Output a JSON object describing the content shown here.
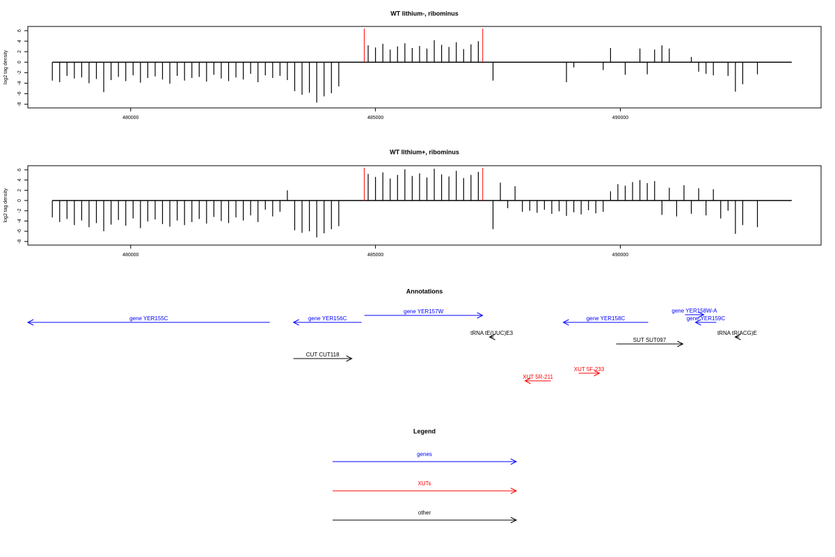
{
  "chart_data": [
    {
      "type": "bar",
      "title": "WT lithium-, ribominus",
      "y_label": "log2 tag density",
      "color": "#000000",
      "marker_color": "#ff0000",
      "markers": [
        484770,
        487190
      ],
      "baseline_range": [
        478400,
        493500
      ],
      "xlim": [
        477900,
        494100
      ],
      "ylim": [
        -8.7,
        6.8
      ],
      "xticks": [
        480000,
        485000,
        490000
      ],
      "yticks": [
        6,
        4,
        2,
        0,
        -2,
        -4,
        -6,
        -8
      ],
      "x": [
        478400,
        478550,
        478700,
        478850,
        479000,
        479150,
        479300,
        479450,
        479600,
        479750,
        479900,
        480050,
        480200,
        480350,
        480500,
        480650,
        480800,
        480950,
        481100,
        481250,
        481400,
        481550,
        481700,
        481850,
        482000,
        482150,
        482300,
        482450,
        482600,
        482750,
        482900,
        483050,
        483200,
        483350,
        483500,
        483650,
        483800,
        483950,
        484100,
        484250,
        484400,
        484550,
        484700,
        484850,
        485000,
        485150,
        485300,
        485450,
        485600,
        485750,
        485900,
        486050,
        486200,
        486350,
        486500,
        486650,
        486800,
        486950,
        487100,
        487250,
        487400,
        487550,
        487700,
        487850,
        488000,
        488150,
        488300,
        488450,
        488600,
        488750,
        488900,
        489050,
        489200,
        489350,
        489500,
        489650,
        489800,
        489950,
        490100,
        490250,
        490400,
        490550,
        490700,
        490850,
        491000,
        491150,
        491300,
        491450,
        491600,
        491750,
        491900,
        492050,
        492200,
        492350,
        492500,
        492650,
        492800,
        492950,
        493100,
        493250,
        493400
      ],
      "values": [
        -3.5,
        -3.8,
        -2.6,
        -3.1,
        -2.9,
        -4.0,
        -3.2,
        -5.7,
        -3.4,
        -2.8,
        -3.6,
        -2.5,
        -3.9,
        -3.0,
        -2.7,
        -3.3,
        -4.1,
        -2.6,
        -3.5,
        -3.0,
        -2.8,
        -3.7,
        -2.4,
        -3.1,
        -3.6,
        -2.9,
        -3.3,
        -2.2,
        -3.8,
        -2.5,
        -3.0,
        -2.6,
        -3.4,
        -5.5,
        -6.2,
        -5.8,
        -7.7,
        -6.5,
        -5.9,
        -4.6,
        0,
        0,
        0,
        3.2,
        2.8,
        3.5,
        2.4,
        3.0,
        3.6,
        2.7,
        3.1,
        2.6,
        4.2,
        3.3,
        2.9,
        3.8,
        2.5,
        3.4,
        4.0,
        0,
        -3.5,
        0,
        0,
        0,
        0,
        0,
        0,
        0,
        0,
        0,
        -3.8,
        -1.0,
        0,
        0,
        0,
        -1.5,
        2.7,
        0,
        -2.4,
        0,
        2.6,
        -2.3,
        2.4,
        3.2,
        2.6,
        0,
        0,
        1.0,
        -1.8,
        -2.2,
        -2.5,
        0,
        -2.6,
        -5.6,
        -4.2,
        0,
        -2.3,
        0,
        0,
        0,
        0
      ]
    },
    {
      "type": "bar",
      "title": "WT lithium+, ribominus",
      "y_label": "log2 tag density",
      "color": "#000000",
      "marker_color": "#ff0000",
      "markers": [
        484770,
        487190
      ],
      "baseline_range": [
        478400,
        493500
      ],
      "xlim": [
        477900,
        494100
      ],
      "ylim": [
        -8.7,
        6.8
      ],
      "xticks": [
        480000,
        485000,
        490000
      ],
      "yticks": [
        6,
        4,
        2,
        0,
        -2,
        -4,
        -6,
        -8
      ],
      "x": [
        478400,
        478550,
        478700,
        478850,
        479000,
        479150,
        479300,
        479450,
        479600,
        479750,
        479900,
        480050,
        480200,
        480350,
        480500,
        480650,
        480800,
        480950,
        481100,
        481250,
        481400,
        481550,
        481700,
        481850,
        482000,
        482150,
        482300,
        482450,
        482600,
        482750,
        482900,
        483050,
        483200,
        483350,
        483500,
        483650,
        483800,
        483950,
        484100,
        484250,
        484400,
        484550,
        484700,
        484850,
        485000,
        485150,
        485300,
        485450,
        485600,
        485750,
        485900,
        486050,
        486200,
        486350,
        486500,
        486650,
        486800,
        486950,
        487100,
        487250,
        487400,
        487550,
        487700,
        487850,
        488000,
        488150,
        488300,
        488450,
        488600,
        488750,
        488900,
        489050,
        489200,
        489350,
        489500,
        489650,
        489800,
        489950,
        490100,
        490250,
        490400,
        490550,
        490700,
        490850,
        491000,
        491150,
        491300,
        491450,
        491600,
        491750,
        491900,
        492050,
        492200,
        492350,
        492500,
        492650,
        492800,
        492950,
        493100,
        493250,
        493400
      ],
      "values": [
        -3.3,
        -4.2,
        -3.6,
        -4.8,
        -3.9,
        -5.2,
        -4.4,
        -6.0,
        -4.7,
        -3.8,
        -4.9,
        -3.5,
        -5.4,
        -4.1,
        -3.7,
        -4.6,
        -5.1,
        -3.9,
        -4.8,
        -4.2,
        -3.6,
        -4.5,
        -3.2,
        -4.0,
        -4.4,
        -3.3,
        -3.9,
        -2.9,
        -4.2,
        -1.8,
        -3.1,
        -2.2,
        2.0,
        -5.8,
        -6.3,
        -6.0,
        -7.2,
        -6.4,
        -5.6,
        -5.0,
        0,
        0,
        0,
        5.2,
        4.6,
        5.5,
        4.3,
        5.0,
        6.1,
        4.8,
        5.3,
        4.5,
        6.2,
        5.1,
        4.7,
        5.8,
        4.4,
        5.0,
        5.6,
        0,
        -5.6,
        3.5,
        -1.5,
        2.8,
        -2.2,
        -2.0,
        -2.4,
        -1.8,
        -2.6,
        -2.1,
        -3.0,
        -2.3,
        -2.7,
        -1.9,
        -2.5,
        -2.2,
        1.8,
        3.2,
        2.9,
        3.6,
        4.0,
        3.4,
        3.8,
        -2.8,
        2.5,
        -3.1,
        3.0,
        -2.6,
        2.4,
        -2.9,
        2.2,
        -3.5,
        -2.0,
        -6.5,
        -4.8,
        0,
        -5.2,
        0,
        0,
        0,
        0
      ]
    }
  ],
  "annotations": {
    "title": "Annotations",
    "features": [
      {
        "label": "gene YER155C",
        "start": 477900,
        "end": 482841,
        "strand": "-",
        "color": "#0000ff"
      },
      {
        "label": "gene YER156C",
        "start": 483324,
        "end": 484716,
        "strand": "-",
        "color": "#0000ff"
      },
      {
        "label": "gene YER157W",
        "start": 484773,
        "end": 487188,
        "strand": "+",
        "color": "#0000ff"
      },
      {
        "label": "tRNA tE(UUC)E3",
        "start": 487330,
        "end": 487415,
        "strand": "-",
        "color": "#000000"
      },
      {
        "label": "gene YER158C",
        "start": 488835,
        "end": 490568,
        "strand": "-",
        "color": "#0000ff"
      },
      {
        "label": "gene YER158W-A",
        "start": 491321,
        "end": 491705,
        "strand": "+",
        "color": "#0000ff"
      },
      {
        "label": "gene YER159C",
        "start": 491534,
        "end": 491960,
        "strand": "-",
        "color": "#0000ff"
      },
      {
        "label": "tRNA tR(ACG)E",
        "start": 492344,
        "end": 492429,
        "strand": "-",
        "color": "#000000"
      },
      {
        "label": "SUT SUT097",
        "start": 489915,
        "end": 491278,
        "strand": "+",
        "color": "#000000"
      },
      {
        "label": "CUT CUT118",
        "start": 483324,
        "end": 484517,
        "strand": "+",
        "color": "#000000"
      },
      {
        "label": "XUT 5R-211",
        "start": 488054,
        "end": 488580,
        "strand": "-",
        "color": "#ff0000"
      },
      {
        "label": "XUT 5F-233",
        "start": 489148,
        "end": 489574,
        "strand": "+",
        "color": "#ff0000"
      }
    ]
  },
  "legend": {
    "title": "Legend",
    "items": [
      {
        "label": "genes",
        "color": "#0000ff"
      },
      {
        "label": "XUTs",
        "color": "#ff0000"
      },
      {
        "label": "other",
        "color": "#000000"
      }
    ]
  }
}
